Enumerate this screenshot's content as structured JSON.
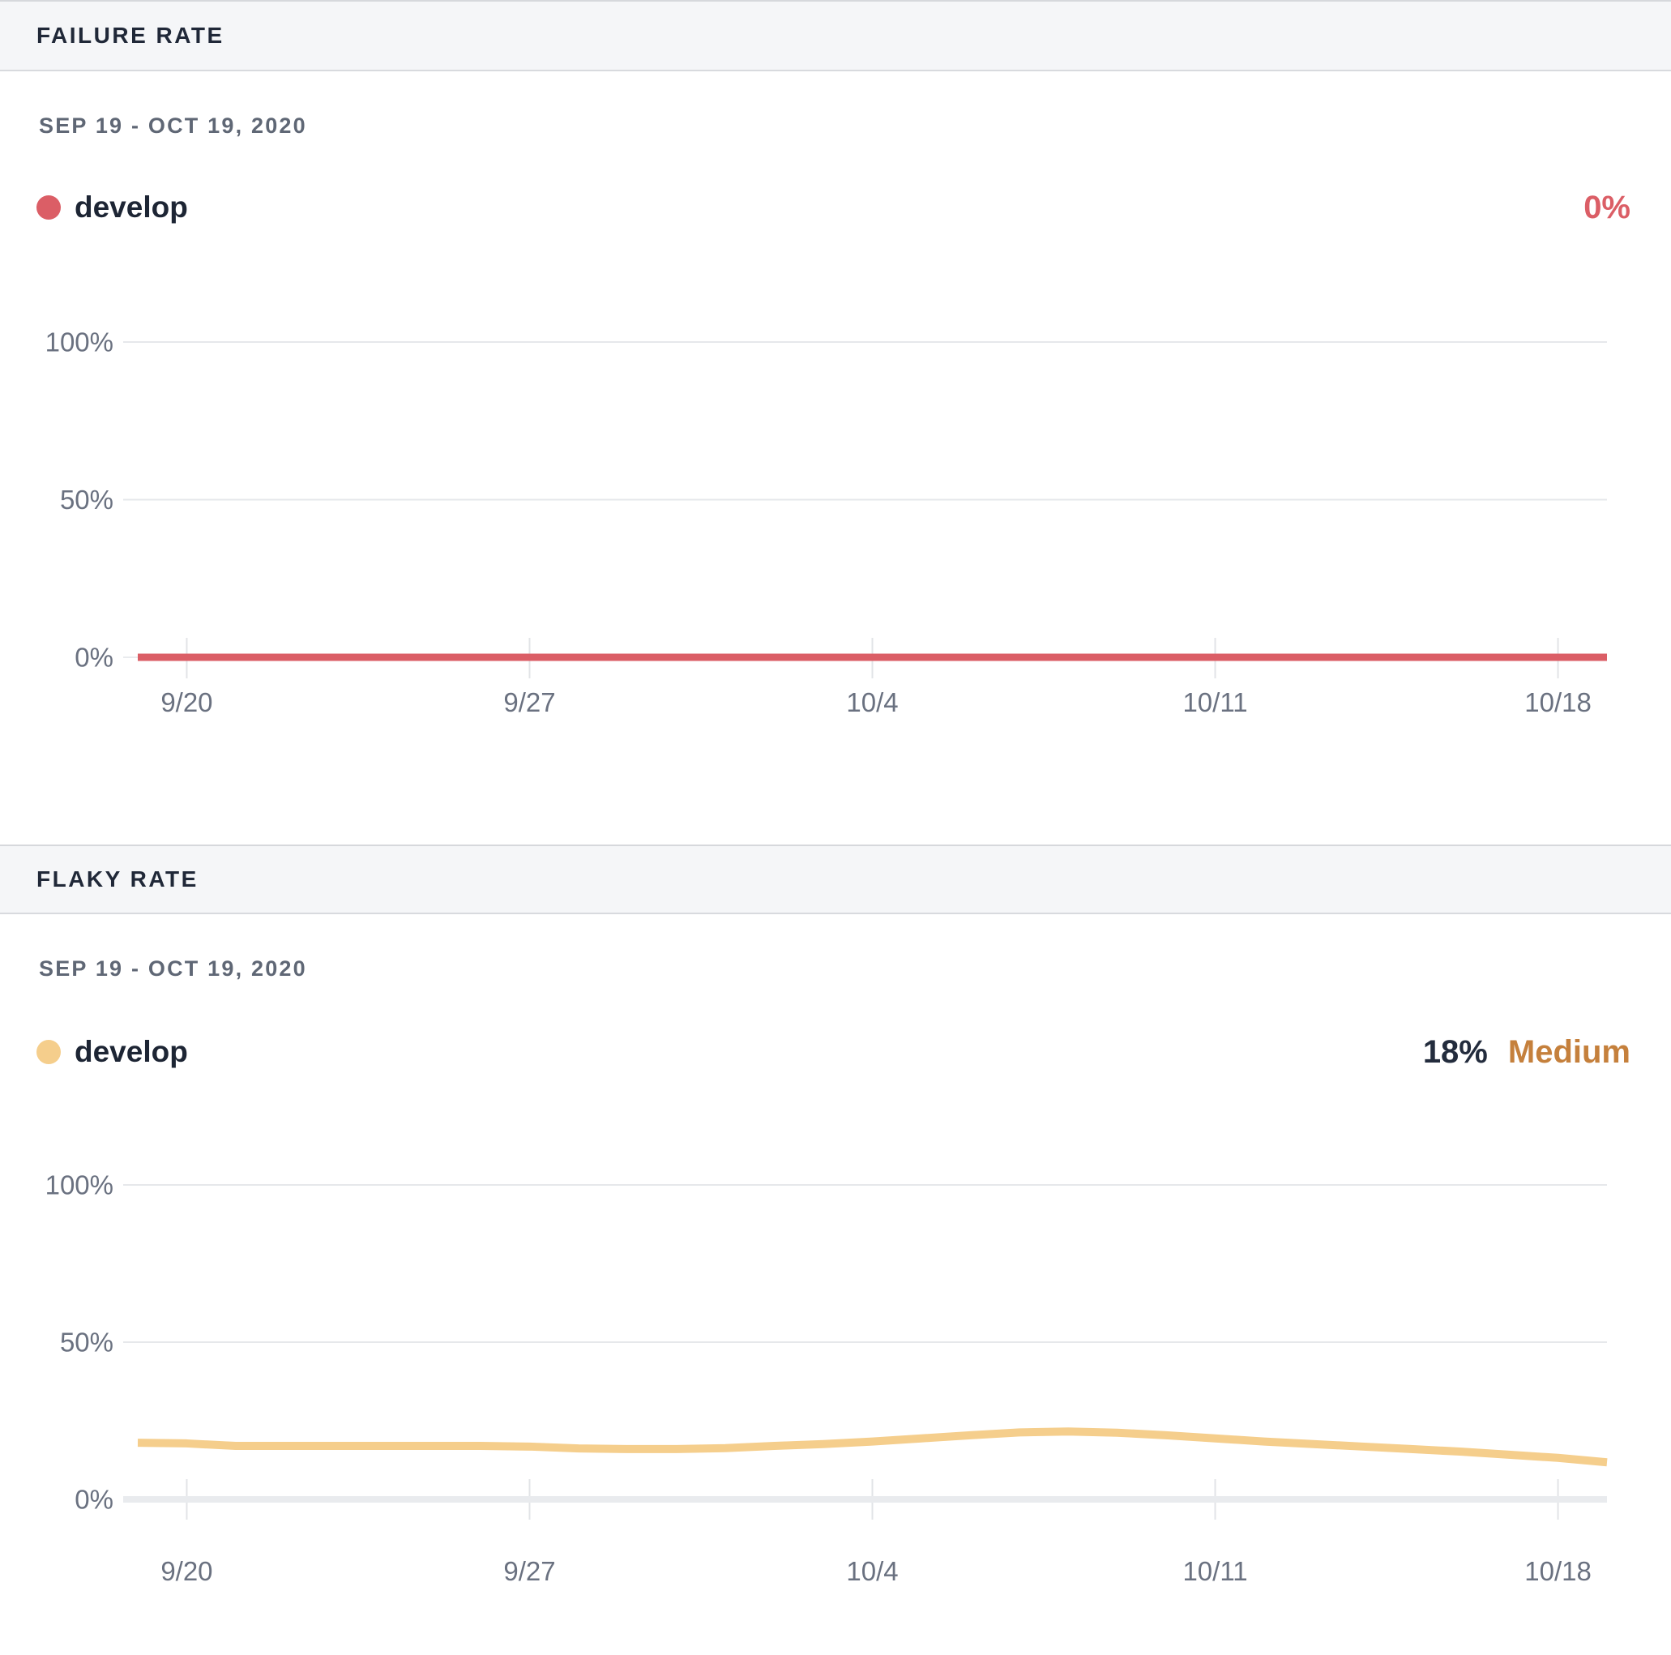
{
  "colors": {
    "red": "#DB5E66",
    "yellow": "#F5CE8C",
    "orange": "#C5803C",
    "navy": "#1d2534",
    "axis_label": "#6a7180",
    "gridline": "#e6e8eb",
    "axis_line": "#e9ebee",
    "tick": "#e2e4e7"
  },
  "panels": [
    {
      "header": "FAILURE RATE",
      "date_range": "SEP 19 - OCT 19, 2020",
      "series_label": "develop",
      "stat_value": "0%"
    },
    {
      "header": "FLAKY RATE",
      "date_range": "SEP 19 - OCT 19, 2020",
      "series_label": "develop",
      "stat_value": "18%",
      "stat_severity": "Medium"
    }
  ],
  "chart_data": [
    {
      "type": "line",
      "title": "Failure rate over time",
      "x": [
        "9/19",
        "9/20",
        "9/21",
        "9/22",
        "9/23",
        "9/24",
        "9/25",
        "9/26",
        "9/27",
        "9/28",
        "9/29",
        "9/30",
        "10/1",
        "10/2",
        "10/3",
        "10/4",
        "10/5",
        "10/6",
        "10/7",
        "10/8",
        "10/9",
        "10/10",
        "10/11",
        "10/12",
        "10/13",
        "10/14",
        "10/15",
        "10/16",
        "10/17",
        "10/18",
        "10/19"
      ],
      "series": [
        {
          "name": "develop",
          "color": "#DB5E66",
          "values": [
            0,
            0,
            0,
            0,
            0,
            0,
            0,
            0,
            0,
            0,
            0,
            0,
            0,
            0,
            0,
            0,
            0,
            0,
            0,
            0,
            0,
            0,
            0,
            0,
            0,
            0,
            0,
            0,
            0,
            0,
            0
          ]
        }
      ],
      "xticks": [
        "9/20",
        "9/27",
        "10/4",
        "10/11",
        "10/18"
      ],
      "yticks": [
        {
          "label": "0%",
          "value": 0
        },
        {
          "label": "50%",
          "value": 50
        },
        {
          "label": "100%",
          "value": 100
        }
      ],
      "ylim": [
        0,
        100
      ],
      "unit": "%",
      "grid": "horizontal",
      "legend_position": "top-left"
    },
    {
      "type": "line",
      "title": "Flaky rate over time",
      "x": [
        "9/19",
        "9/20",
        "9/21",
        "9/22",
        "9/23",
        "9/24",
        "9/25",
        "9/26",
        "9/27",
        "9/28",
        "9/29",
        "9/30",
        "10/1",
        "10/2",
        "10/3",
        "10/4",
        "10/5",
        "10/6",
        "10/7",
        "10/8",
        "10/9",
        "10/10",
        "10/11",
        "10/12",
        "10/13",
        "10/14",
        "10/15",
        "10/16",
        "10/17",
        "10/18",
        "10/19"
      ],
      "series": [
        {
          "name": "develop",
          "color": "#F5CE8C",
          "values": [
            18,
            17.8,
            17,
            17,
            17,
            17,
            17,
            17,
            16.8,
            16.2,
            16,
            16,
            16.3,
            17,
            17.6,
            18.4,
            19.4,
            20.4,
            21.3,
            21.6,
            21.2,
            20.4,
            19.4,
            18.4,
            17.6,
            16.8,
            16,
            15.2,
            14.2,
            13.2,
            11.8
          ]
        }
      ],
      "xticks": [
        "9/20",
        "9/27",
        "10/4",
        "10/11",
        "10/18"
      ],
      "yticks": [
        {
          "label": "0%",
          "value": 0
        },
        {
          "label": "50%",
          "value": 50
        },
        {
          "label": "100%",
          "value": 100
        }
      ],
      "ylim": [
        0,
        100
      ],
      "unit": "%",
      "grid": "horizontal",
      "legend_position": "top-left"
    }
  ]
}
